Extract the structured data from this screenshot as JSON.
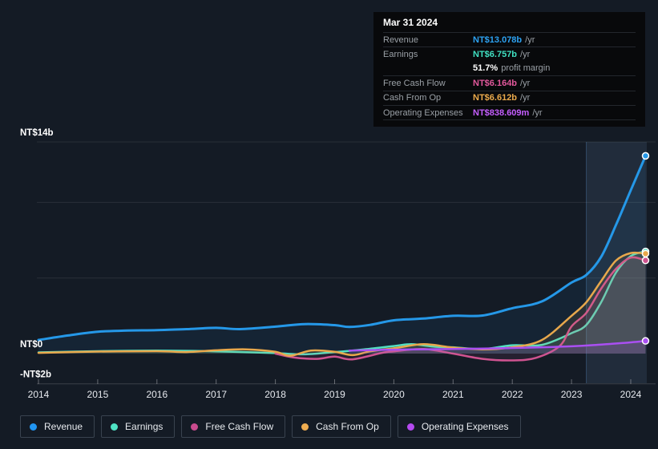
{
  "tooltip": {
    "date": "Mar 31 2024",
    "rows": [
      {
        "label": "Revenue",
        "value": "NT$13.078b",
        "suffix": "/yr",
        "color": "#2da2f2"
      },
      {
        "label": "Earnings",
        "value": "NT$6.757b",
        "suffix": "/yr",
        "color": "#40e0c2",
        "margin_value": "51.7%",
        "margin_label": "profit margin"
      },
      {
        "label": "Free Cash Flow",
        "value": "NT$6.164b",
        "suffix": "/yr",
        "color": "#e2589c"
      },
      {
        "label": "Cash From Op",
        "value": "NT$6.612b",
        "suffix": "/yr",
        "color": "#ecab4c"
      },
      {
        "label": "Operating Expenses",
        "value": "NT$838.609m",
        "suffix": "/yr",
        "color": "#c55eff"
      }
    ]
  },
  "chart_data": {
    "type": "line",
    "unit": "NT$ billions per year",
    "highlight_date": "Mar 31 2024",
    "xlim": [
      2013.95,
      2024.45
    ],
    "ylim": [
      -2,
      14
    ],
    "x_ticks": [
      2014,
      2015,
      2016,
      2017,
      2018,
      2019,
      2020,
      2021,
      2022,
      2023,
      2024
    ],
    "y_axis": {
      "labels": [
        {
          "text": "NT$14b",
          "value": 14
        },
        {
          "text": "NT$0",
          "value": 0
        },
        {
          "text": "-NT$2b",
          "value": -2
        }
      ],
      "gridlines": [
        14,
        10,
        5
      ],
      "zero_value": 0,
      "bottom_value": -2
    },
    "highlight_band": {
      "from": 2023.25,
      "to": 2024.27
    },
    "legend_position": "bottom",
    "grid": true,
    "series": [
      {
        "name": "Revenue",
        "color": "#2598e8",
        "stroke_width": 3,
        "fill_opacity": 0.08,
        "points": [
          [
            2014,
            0.9
          ],
          [
            2014.5,
            1.2
          ],
          [
            2015,
            1.45
          ],
          [
            2015.5,
            1.52
          ],
          [
            2016,
            1.55
          ],
          [
            2016.5,
            1.62
          ],
          [
            2017,
            1.7
          ],
          [
            2017.4,
            1.62
          ],
          [
            2018,
            1.78
          ],
          [
            2018.5,
            1.95
          ],
          [
            2019,
            1.88
          ],
          [
            2019.25,
            1.76
          ],
          [
            2019.6,
            1.9
          ],
          [
            2020,
            2.2
          ],
          [
            2020.5,
            2.32
          ],
          [
            2021,
            2.5
          ],
          [
            2021.5,
            2.52
          ],
          [
            2022,
            3.0
          ],
          [
            2022.5,
            3.45
          ],
          [
            2023,
            4.7
          ],
          [
            2023.25,
            5.2
          ],
          [
            2023.5,
            6.4
          ],
          [
            2023.75,
            8.5
          ],
          [
            2024,
            10.8
          ],
          [
            2024.25,
            13.078
          ]
        ]
      },
      {
        "name": "Earnings",
        "color": "#53dfc2",
        "stroke_width": 2.5,
        "fill_opacity": 0.12,
        "points": [
          [
            2014,
            0.08
          ],
          [
            2015,
            0.16
          ],
          [
            2016,
            0.2
          ],
          [
            2017,
            0.15
          ],
          [
            2018,
            0.03
          ],
          [
            2018.5,
            -0.05
          ],
          [
            2019,
            0.1
          ],
          [
            2019.5,
            0.28
          ],
          [
            2020,
            0.5
          ],
          [
            2020.3,
            0.62
          ],
          [
            2020.7,
            0.45
          ],
          [
            2021,
            0.42
          ],
          [
            2021.5,
            0.3
          ],
          [
            2022,
            0.55
          ],
          [
            2022.5,
            0.58
          ],
          [
            2023,
            1.35
          ],
          [
            2023.25,
            1.9
          ],
          [
            2023.5,
            3.4
          ],
          [
            2023.75,
            5.35
          ],
          [
            2024,
            6.45
          ],
          [
            2024.25,
            6.757
          ]
        ]
      },
      {
        "name": "Free Cash Flow",
        "color": "#cf5390",
        "stroke_width": 2.5,
        "fill_opacity": 0.1,
        "points": [
          [
            2018,
            0.0
          ],
          [
            2018.3,
            -0.25
          ],
          [
            2018.7,
            -0.35
          ],
          [
            2019,
            -0.2
          ],
          [
            2019.3,
            -0.38
          ],
          [
            2019.8,
            0.05
          ],
          [
            2020,
            0.15
          ],
          [
            2020.5,
            0.3
          ],
          [
            2021,
            0.0
          ],
          [
            2021.5,
            -0.35
          ],
          [
            2022,
            -0.45
          ],
          [
            2022.4,
            -0.28
          ],
          [
            2022.8,
            0.5
          ],
          [
            2023,
            1.8
          ],
          [
            2023.25,
            2.7
          ],
          [
            2023.5,
            4.3
          ],
          [
            2023.75,
            5.6
          ],
          [
            2024,
            6.35
          ],
          [
            2024.25,
            6.164
          ]
        ]
      },
      {
        "name": "Cash From Op",
        "color": "#e8a84c",
        "stroke_width": 2.5,
        "fill_opacity": 0.1,
        "points": [
          [
            2014,
            0.05
          ],
          [
            2015,
            0.13
          ],
          [
            2016,
            0.16
          ],
          [
            2016.5,
            0.1
          ],
          [
            2017,
            0.22
          ],
          [
            2017.5,
            0.28
          ],
          [
            2018,
            0.12
          ],
          [
            2018.25,
            -0.15
          ],
          [
            2018.6,
            0.2
          ],
          [
            2019,
            0.12
          ],
          [
            2019.3,
            -0.1
          ],
          [
            2019.6,
            0.15
          ],
          [
            2020,
            0.35
          ],
          [
            2020.5,
            0.62
          ],
          [
            2021,
            0.4
          ],
          [
            2021.5,
            0.28
          ],
          [
            2022,
            0.42
          ],
          [
            2022.5,
            0.9
          ],
          [
            2023,
            2.5
          ],
          [
            2023.25,
            3.4
          ],
          [
            2023.5,
            4.8
          ],
          [
            2023.75,
            6.15
          ],
          [
            2024,
            6.65
          ],
          [
            2024.25,
            6.612
          ]
        ]
      },
      {
        "name": "Operating Expenses",
        "color": "#aa4ff2",
        "stroke_width": 2.5,
        "fill_opacity": 0.15,
        "points": [
          [
            2019.25,
            0.2
          ],
          [
            2020,
            0.26
          ],
          [
            2021,
            0.3
          ],
          [
            2022,
            0.37
          ],
          [
            2023,
            0.48
          ],
          [
            2023.5,
            0.6
          ],
          [
            2024,
            0.74
          ],
          [
            2024.25,
            0.839
          ]
        ]
      }
    ]
  },
  "legend": {
    "items": [
      {
        "label": "Revenue",
        "color": "#2196f3"
      },
      {
        "label": "Earnings",
        "color": "#4fe3c4"
      },
      {
        "label": "Free Cash Flow",
        "color": "#c94b8e"
      },
      {
        "label": "Cash From Op",
        "color": "#eeac50"
      },
      {
        "label": "Operating Expenses",
        "color": "#b44af0"
      }
    ]
  }
}
